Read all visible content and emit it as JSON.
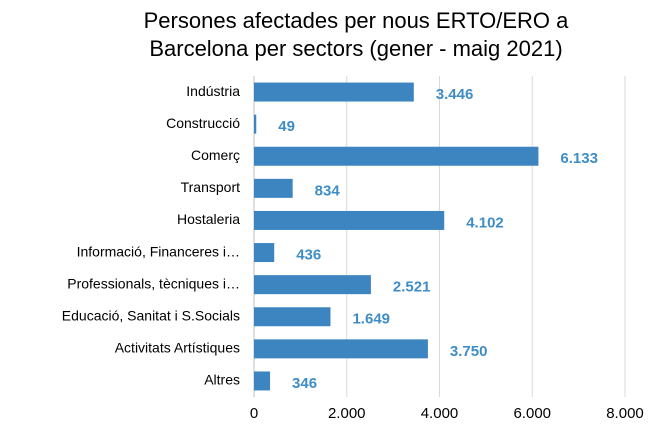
{
  "chart_data": {
    "type": "barh",
    "title": [
      "Persones afectades per nous ERTO/ERO a",
      "Barcelona per sectors (gener - maig 2021)"
    ],
    "categories": [
      "Indústria",
      "Construcció",
      "Comerç",
      "Transport",
      "Hostaleria",
      "Informació, Financeres i…",
      "Professionals, tècniques i…",
      "Educació, Sanitat i S.Socials",
      "Activitats Artístiques",
      "Altres"
    ],
    "values": [
      3446,
      49,
      6133,
      834,
      4102,
      436,
      2521,
      1649,
      3750,
      346
    ],
    "value_labels": [
      "3.446",
      "49",
      "6.133",
      "834",
      "4.102",
      "436",
      "2.521",
      "1.649",
      "3.750",
      "346"
    ],
    "color": "#3d85c0",
    "xlim": [
      0,
      8000
    ],
    "xticks": [
      0,
      {
        "value": 2000,
        "label": "2.000"
      },
      {
        "value": 4000,
        "label": "4.000"
      },
      {
        "value": 6000,
        "label": "6.000"
      },
      {
        "value": 8000,
        "label": "8.000"
      }
    ],
    "grid": true
  }
}
